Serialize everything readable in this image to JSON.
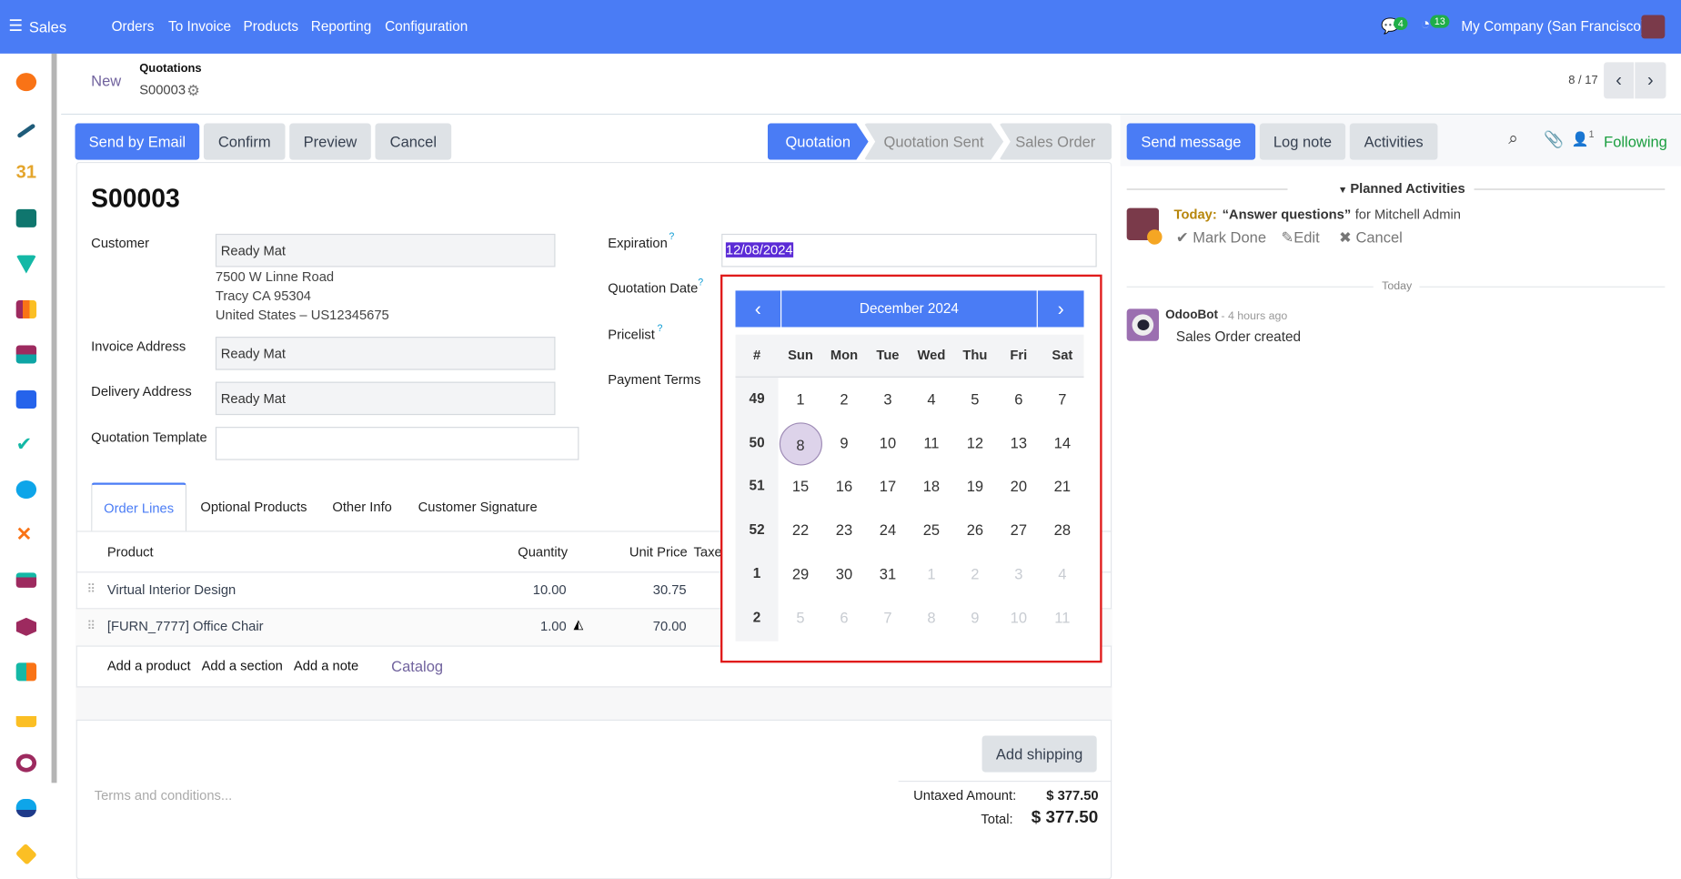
{
  "topbar": {
    "app": "Sales",
    "menu": [
      "Orders",
      "To Invoice",
      "Products",
      "Reporting",
      "Configuration"
    ],
    "messages_count": "4",
    "activities_count": "13",
    "company": "My Company (San Francisco)",
    "accent": "#4a7cf5"
  },
  "control": {
    "new": "New",
    "breadcrumb": "Quotations",
    "record": "S00003",
    "pager": "8 / 17"
  },
  "actions": {
    "send_email": "Send by Email",
    "confirm": "Confirm",
    "preview": "Preview",
    "cancel": "Cancel"
  },
  "status": {
    "stages": [
      "Quotation",
      "Quotation Sent",
      "Sales Order"
    ],
    "current": "Quotation"
  },
  "form": {
    "title": "S00003",
    "customer_label": "Customer",
    "customer": "Ready Mat",
    "address": [
      "7500 W Linne Road",
      "Tracy CA 95304",
      "United States – US12345675"
    ],
    "invoice_label": "Invoice Address",
    "invoice": "Ready Mat",
    "delivery_label": "Delivery Address",
    "delivery": "Ready Mat",
    "template_label": "Quotation Template",
    "template": "",
    "expiration_label": "Expiration",
    "expiration": "12/08/2024",
    "qdate_label": "Quotation Date",
    "pricelist_label": "Pricelist",
    "payment_label": "Payment Terms",
    "help": "?"
  },
  "tabs": [
    "Order Lines",
    "Optional Products",
    "Other Info",
    "Customer Signature"
  ],
  "table": {
    "headers": [
      "Product",
      "Quantity",
      "Unit Price",
      "Taxe"
    ],
    "rows": [
      {
        "product": "Virtual Interior Design",
        "qty": "10.00",
        "price": "30.75"
      },
      {
        "product": "[FURN_7777] Office Chair",
        "qty": "1.00",
        "price": "70.00"
      }
    ],
    "add_product": "Add a product",
    "add_section": "Add a section",
    "add_note": "Add a note",
    "catalog": "Catalog"
  },
  "footer": {
    "add_shipping": "Add shipping",
    "terms_placeholder": "Terms and conditions...",
    "untaxed_label": "Untaxed Amount:",
    "untaxed": "$ 377.50",
    "total_label": "Total:",
    "total": "$ 377.50"
  },
  "calendar": {
    "month": "December 2024",
    "headers": [
      "#",
      "Sun",
      "Mon",
      "Tue",
      "Wed",
      "Thu",
      "Fri",
      "Sat"
    ],
    "selected": 8,
    "weeks": [
      {
        "w": "49",
        "days": [
          [
            "1",
            0
          ],
          [
            "2",
            0
          ],
          [
            "3",
            0
          ],
          [
            "4",
            0
          ],
          [
            "5",
            0
          ],
          [
            "6",
            0
          ],
          [
            "7",
            0
          ]
        ]
      },
      {
        "w": "50",
        "days": [
          [
            "8",
            0
          ],
          [
            "9",
            0
          ],
          [
            "10",
            0
          ],
          [
            "11",
            0
          ],
          [
            "12",
            0
          ],
          [
            "13",
            0
          ],
          [
            "14",
            0
          ]
        ]
      },
      {
        "w": "51",
        "days": [
          [
            "15",
            0
          ],
          [
            "16",
            0
          ],
          [
            "17",
            0
          ],
          [
            "18",
            0
          ],
          [
            "19",
            0
          ],
          [
            "20",
            0
          ],
          [
            "21",
            0
          ]
        ]
      },
      {
        "w": "52",
        "days": [
          [
            "22",
            0
          ],
          [
            "23",
            0
          ],
          [
            "24",
            0
          ],
          [
            "25",
            0
          ],
          [
            "26",
            0
          ],
          [
            "27",
            0
          ],
          [
            "28",
            0
          ]
        ]
      },
      {
        "w": "1",
        "days": [
          [
            "29",
            0
          ],
          [
            "30",
            0
          ],
          [
            "31",
            0
          ],
          [
            "1",
            1
          ],
          [
            "2",
            1
          ],
          [
            "3",
            1
          ],
          [
            "4",
            1
          ]
        ]
      },
      {
        "w": "2",
        "days": [
          [
            "5",
            1
          ],
          [
            "6",
            1
          ],
          [
            "7",
            1
          ],
          [
            "8",
            1
          ],
          [
            "9",
            1
          ],
          [
            "10",
            1
          ],
          [
            "11",
            1
          ]
        ]
      }
    ]
  },
  "chatter": {
    "send_message": "Send message",
    "log_note": "Log note",
    "activities": "Activities",
    "followers": "1",
    "following": "Following",
    "planned": "Planned Activities",
    "act_today": "Today:",
    "act_title": "“Answer questions”",
    "act_for": "for Mitchell Admin",
    "mark_done": "Mark Done",
    "edit": "Edit",
    "cancel": "Cancel",
    "sep": "Today",
    "author": "OdooBot",
    "time": "- 4 hours ago",
    "message": "Sales Order created"
  }
}
